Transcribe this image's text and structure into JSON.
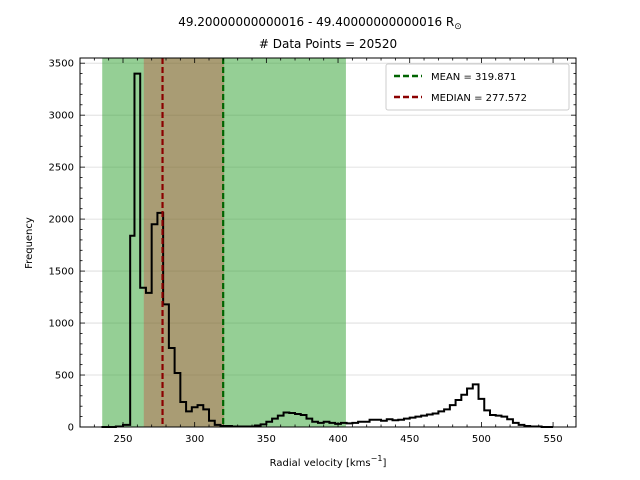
{
  "chart_data": {
    "type": "histogram",
    "title_line1": "49.20000000000016 - 49.40000000000016 R",
    "title_symbol": "⊙",
    "title_line2": "# Data Points = 20520",
    "xlabel": "Radial velocity [kms",
    "xlabel_sup": "−1",
    "xlabel_end": "]",
    "ylabel": "Frequency",
    "xlim": [
      220,
      566
    ],
    "ylim": [
      0,
      3550
    ],
    "xticks": [
      250,
      300,
      350,
      400,
      450,
      500,
      550
    ],
    "yticks": [
      0,
      500,
      1000,
      1500,
      2000,
      2500,
      3000,
      3500
    ],
    "grid": "horizontal",
    "legend_position": "top-right",
    "mean": {
      "label": "MEAN = 319.871",
      "value": 319.871,
      "color": "#006400"
    },
    "median": {
      "label": "MEDIAN = 277.572",
      "value": 277.572,
      "color": "#8b0000"
    },
    "bands": [
      {
        "from": 235.5,
        "to": 405.5,
        "color": "#2ca02c",
        "opacity": 0.5
      },
      {
        "from": 264.5,
        "to": 320.5,
        "color": "#d62728",
        "opacity": 0.3
      }
    ],
    "hist_color": "#000000",
    "bin_edges": [
      235,
      240,
      245,
      250,
      255,
      258,
      262,
      266,
      270,
      274,
      278,
      282,
      286,
      290,
      294,
      298,
      302,
      306,
      310,
      314,
      318,
      322,
      326,
      330,
      334,
      338,
      342,
      346,
      350,
      354,
      358,
      362,
      366,
      370,
      374,
      378,
      382,
      386,
      390,
      394,
      398,
      402,
      406,
      410,
      414,
      418,
      422,
      426,
      430,
      434,
      438,
      442,
      446,
      450,
      454,
      458,
      462,
      466,
      470,
      474,
      478,
      482,
      486,
      490,
      494,
      498,
      502,
      506,
      510,
      514,
      518,
      522,
      526,
      530,
      534,
      538,
      542,
      546,
      550
    ],
    "counts": [
      0,
      0,
      5,
      20,
      1840,
      3400,
      1340,
      1290,
      1950,
      2060,
      1180,
      760,
      520,
      240,
      150,
      190,
      210,
      170,
      60,
      20,
      10,
      10,
      5,
      5,
      5,
      5,
      15,
      25,
      50,
      80,
      110,
      140,
      135,
      125,
      115,
      80,
      50,
      40,
      50,
      40,
      30,
      40,
      35,
      40,
      50,
      50,
      70,
      70,
      60,
      75,
      65,
      70,
      80,
      90,
      100,
      110,
      120,
      130,
      150,
      170,
      210,
      260,
      310,
      370,
      410,
      270,
      160,
      115,
      110,
      100,
      75,
      40,
      20,
      10,
      5,
      5,
      0,
      0
    ]
  }
}
